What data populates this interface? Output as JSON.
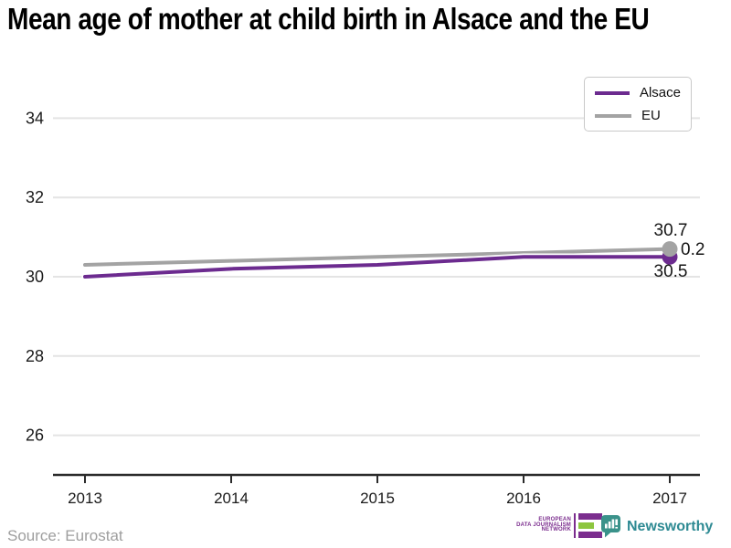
{
  "title": "Mean age of mother at child birth in Alsace and the EU",
  "source": "Source: Eurostat",
  "footer": {
    "edjn_lines": [
      "EUROPEAN",
      "DATA JOURNALISM",
      "NETWORK"
    ],
    "newsworthy_label": "Newsworthy"
  },
  "colors": {
    "alsace": "#6c2b8f",
    "eu": "#a3a3a3",
    "gridline": "#e4e4e4",
    "axis": "#2b2b2b",
    "edjn_purple": "#7b2d8e",
    "edjn_green": "#8dc63f",
    "newsworthy_teal": "#3a928a",
    "source_text": "#9e9e9e"
  },
  "chart_data": {
    "type": "line",
    "title": "Mean age of mother at child birth in Alsace and the EU",
    "x": [
      2013,
      2014,
      2015,
      2016,
      2017
    ],
    "series": [
      {
        "name": "Alsace",
        "color": "#6c2b8f",
        "values": [
          30.0,
          30.2,
          30.3,
          30.5,
          30.5
        ],
        "end_label": "30.5"
      },
      {
        "name": "EU",
        "color": "#a3a3a3",
        "values": [
          30.3,
          30.4,
          30.5,
          30.6,
          30.7
        ],
        "end_label": "30.7"
      }
    ],
    "diff_label": "0.2",
    "y_ticks": [
      34,
      32,
      30,
      28,
      26
    ],
    "ylim": [
      25,
      35
    ],
    "xlabel": "",
    "ylabel": "",
    "grid": "horizontal",
    "legend_position": "top-right",
    "source": "Source: Eurostat"
  }
}
